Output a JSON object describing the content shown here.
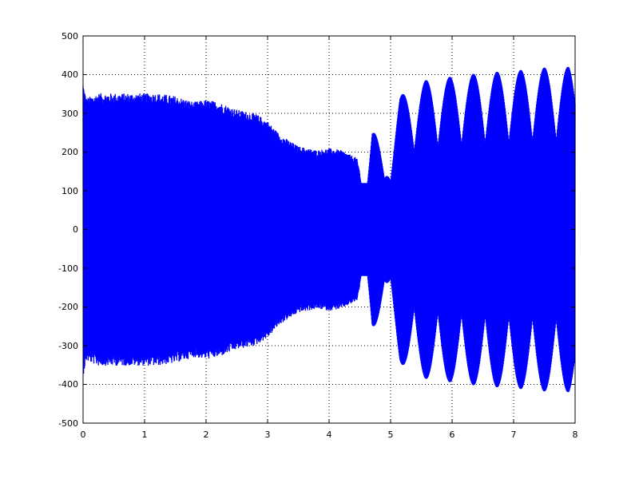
{
  "chart_data": {
    "type": "line",
    "title": "",
    "xlabel": "",
    "ylabel": "",
    "xlim": [
      0,
      8
    ],
    "ylim": [
      -500,
      500
    ],
    "xticks": [
      "0",
      "1",
      "2",
      "3",
      "4",
      "5",
      "6",
      "7",
      "8"
    ],
    "yticks": [
      "500",
      "400",
      "300",
      "200",
      "100",
      "0",
      "-100",
      "-200",
      "-300",
      "-400",
      "-500"
    ],
    "grid": true,
    "grid_style": "dotted",
    "line_color": "#0000ff",
    "series": [
      {
        "envelope_points": [
          {
            "x": 0.0,
            "y": 380
          },
          {
            "x": 0.05,
            "y": 340
          },
          {
            "x": 0.25,
            "y": 352
          },
          {
            "x": 0.5,
            "y": 352
          },
          {
            "x": 0.8,
            "y": 352
          },
          {
            "x": 1.2,
            "y": 352
          },
          {
            "x": 1.5,
            "y": 345
          },
          {
            "x": 1.8,
            "y": 330
          },
          {
            "x": 2.0,
            "y": 335
          },
          {
            "x": 2.2,
            "y": 330
          },
          {
            "x": 2.5,
            "y": 310
          },
          {
            "x": 2.8,
            "y": 300
          },
          {
            "x": 3.0,
            "y": 280
          },
          {
            "x": 3.2,
            "y": 245
          },
          {
            "x": 3.5,
            "y": 215
          },
          {
            "x": 3.8,
            "y": 205
          },
          {
            "x": 4.0,
            "y": 210
          },
          {
            "x": 4.2,
            "y": 205
          },
          {
            "x": 4.45,
            "y": 185
          },
          {
            "x": 4.55,
            "y": 120
          },
          {
            "x": 4.7,
            "y": 295
          },
          {
            "x": 4.9,
            "y": 150
          },
          {
            "x": 5.15,
            "y": 345
          },
          {
            "x": 5.55,
            "y": 385
          },
          {
            "x": 6.0,
            "y": 395
          },
          {
            "x": 6.5,
            "y": 405
          },
          {
            "x": 7.0,
            "y": 410
          },
          {
            "x": 7.5,
            "y": 418
          },
          {
            "x": 7.9,
            "y": 420
          },
          {
            "x": 8.0,
            "y": 400
          }
        ]
      }
    ]
  }
}
